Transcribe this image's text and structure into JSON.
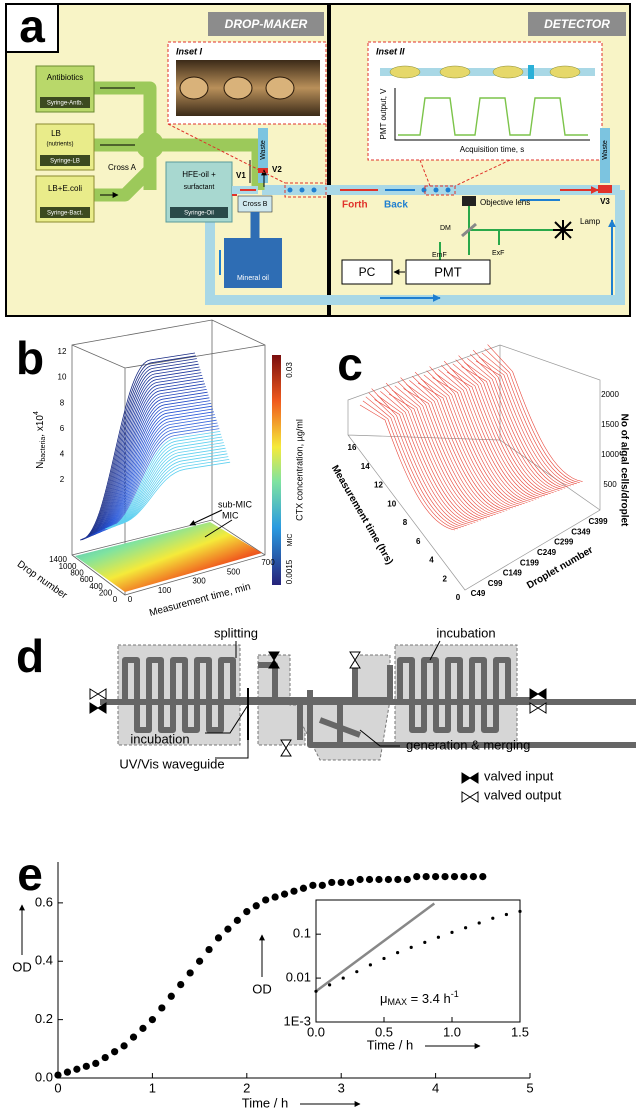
{
  "panel_a": {
    "label": "a",
    "drop_maker": "DROP-MAKER",
    "detector": "DETECTOR",
    "inset_1": "Inset I",
    "inset_2": "Inset II",
    "antibiotics": "Antibiotics",
    "syringe_antb": "Syringe-Antb.",
    "lb": "LB",
    "nutrients": "(nutrients)",
    "syringe_lb": "Syringe-LB",
    "lb_ecoli": "LB+E.coli",
    "syringe_bact": "Syringe-Bact.",
    "cross_a": "Cross A",
    "hfe_oil": "HFE-oil +",
    "surfactant": "surfactant",
    "syringe_oil": "Syringe-Oil",
    "v1": "V1",
    "cross_b": "Cross B",
    "mineral_oil": "Mineral oil",
    "waste_1": "Waste",
    "v2": "V2",
    "forth": "Forth",
    "back": "Back",
    "objective_lens": "Objective lens",
    "lamp": "Lamp",
    "dm": "DM",
    "emf": "EmF",
    "exf": "ExF",
    "pc": "PC",
    "pmt": "PMT",
    "waste_2": "Waste",
    "v3": "V3",
    "pmt_output": "PMT output, V",
    "acquisition_time": "Acquisition time, s"
  },
  "panel_b": {
    "label": "b",
    "z_label": {
      "main": "N",
      "sub": "bacteria",
      "rest": ", x10",
      "sup": "4"
    },
    "z_ticks": [
      "12",
      "10",
      "8",
      "6",
      "4",
      "2"
    ],
    "drop_label": "Drop number",
    "drop_ticks": [
      "1400",
      "1000",
      "800",
      "600",
      "400",
      "200",
      "0"
    ],
    "time_label": "Measurement time, min",
    "time_ticks": [
      "0",
      "100",
      "300",
      "500",
      "700"
    ],
    "sub_mic": "sub-MIC",
    "mic": "MIC",
    "colorbar_label": "CTX concentration, µg/ml",
    "colorbar_max": "0.03",
    "colorbar_mic": "MIC",
    "colorbar_min": "0.0015"
  },
  "panel_c": {
    "label": "c",
    "z_label": "No of algal cells/droplet",
    "z_ticks": [
      "2000",
      "1500",
      "1000",
      "500"
    ],
    "droplet_label": "Droplet number",
    "droplet_ticks": [
      "C49",
      "C99",
      "C149",
      "C199",
      "C249",
      "C299",
      "C349",
      "C399"
    ],
    "time_label": "Measurement time (hrs)",
    "time_ticks": [
      "16",
      "14",
      "12",
      "10",
      "8",
      "6",
      "4",
      "2",
      "0"
    ]
  },
  "panel_d": {
    "label": "d",
    "splitting": "splitting",
    "incubation_right": "incubation",
    "incubation_left": "incubation",
    "waveguide": "UV/Vis waveguide",
    "generation": "generation & merging",
    "valved_input": "valved input",
    "valved_output": "valved output"
  },
  "panel_e": {
    "label": "e"
  },
  "chart_data": [
    {
      "type": "scatter",
      "x_label": "Time / h",
      "y_label": "OD",
      "color": "#000000",
      "x": [
        0,
        0.1,
        0.2,
        0.3,
        0.4,
        0.5,
        0.6,
        0.7,
        0.8,
        0.9,
        1,
        1.1,
        1.2,
        1.3,
        1.4,
        1.5,
        1.6,
        1.7,
        1.8,
        1.9,
        2,
        2.1,
        2.2,
        2.3,
        2.4,
        2.5,
        2.6,
        2.7,
        2.8,
        2.9,
        3,
        3.1,
        3.2,
        3.3,
        3.4,
        3.5,
        3.6,
        3.7,
        3.8,
        3.9,
        4,
        4.1,
        4.2,
        4.3,
        4.4,
        4.5
      ],
      "values": [
        0.01,
        0.02,
        0.03,
        0.04,
        0.05,
        0.07,
        0.09,
        0.11,
        0.14,
        0.17,
        0.2,
        0.24,
        0.28,
        0.32,
        0.36,
        0.4,
        0.44,
        0.48,
        0.51,
        0.54,
        0.57,
        0.59,
        0.61,
        0.62,
        0.63,
        0.64,
        0.65,
        0.66,
        0.66,
        0.67,
        0.67,
        0.67,
        0.68,
        0.68,
        0.68,
        0.68,
        0.68,
        0.68,
        0.69,
        0.69,
        0.69,
        0.69,
        0.69,
        0.69,
        0.69,
        0.69
      ],
      "xlim": [
        0,
        5
      ],
      "ylim": [
        0,
        0.74
      ],
      "xticks": [
        0,
        1,
        2,
        3,
        4,
        5
      ],
      "yticks": [
        {
          "value": 0,
          "label": "0.0"
        },
        0.2,
        0.4,
        0.6
      ]
    },
    {
      "type": "scatter",
      "x_label": "Time / h",
      "y_label": "OD",
      "color": "#000000",
      "log_y": true,
      "x": [
        0,
        0.1,
        0.2,
        0.3,
        0.4,
        0.5,
        0.6,
        0.7,
        0.8,
        0.9,
        1,
        1.1,
        1.2,
        1.3,
        1.4,
        1.5
      ],
      "values": [
        0.005,
        0.007,
        0.01,
        0.014,
        0.02,
        0.028,
        0.038,
        0.05,
        0.065,
        0.085,
        0.11,
        0.14,
        0.18,
        0.23,
        0.28,
        0.33
      ],
      "fit_line": {
        "x": [
          0,
          0.87
        ],
        "values": [
          0.005,
          0.5
        ],
        "color": "#888888"
      },
      "xlim": [
        0,
        1.5
      ],
      "ylim": [
        0.001,
        0.6
      ],
      "xticks": [
        {
          "value": 0,
          "label": "0.0"
        },
        0.5,
        {
          "value": 1,
          "label": "1.0"
        },
        1.5
      ],
      "yticks": [
        {
          "value": 0.001,
          "label": "1E-3"
        },
        0.01,
        0.1
      ],
      "annotation": {
        "symbol": "μ",
        "sub": "MAX",
        "text": " = 3.4 h",
        "sup": "-1"
      }
    }
  ]
}
